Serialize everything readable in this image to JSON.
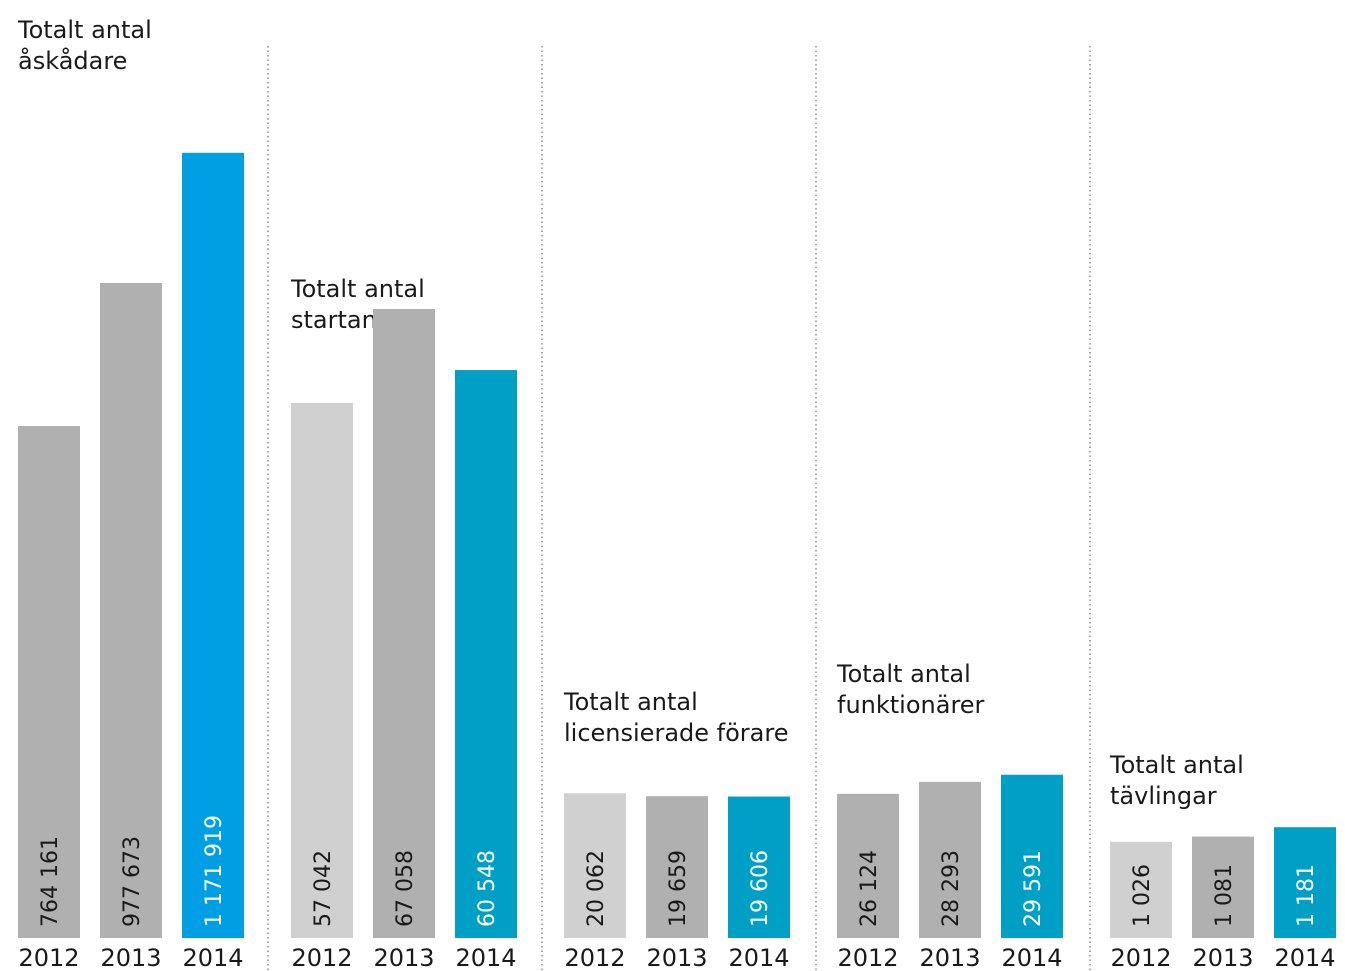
{
  "chart_data": [
    {
      "type": "bar",
      "title": [
        "Totalt antal",
        "åskådare"
      ],
      "categories": [
        "2012",
        "2013",
        "2014"
      ],
      "values": [
        764161,
        977673,
        1171919
      ],
      "value_labels": [
        "764 161",
        "977 673",
        "1 171 919"
      ],
      "colors": [
        "#b0b0b0",
        "#b0b0b0",
        "#009fe3"
      ],
      "ylim": [
        0,
        1400000
      ]
    },
    {
      "type": "bar",
      "title": [
        "Totalt antal",
        "startande"
      ],
      "categories": [
        "2012",
        "2013",
        "2014"
      ],
      "values": [
        57042,
        67058,
        60548
      ],
      "value_labels": [
        "57 042",
        "67 058",
        "60 548"
      ],
      "colors": [
        "#d0d0d0",
        "#b0b0b0",
        "#009fc6"
      ],
      "ylim": [
        0,
        100000
      ]
    },
    {
      "type": "bar",
      "title": [
        "Totalt antal",
        "licensierade förare"
      ],
      "categories": [
        "2012",
        "2013",
        "2014"
      ],
      "values": [
        20062,
        19659,
        19606
      ],
      "value_labels": [
        "20 062",
        "19 659",
        "19 606"
      ],
      "colors": [
        "#d0d0d0",
        "#b0b0b0",
        "#009fc6"
      ],
      "ylim": [
        0,
        130000
      ]
    },
    {
      "type": "bar",
      "title": [
        "Totalt antal",
        "funktionärer"
      ],
      "categories": [
        "2012",
        "2013",
        "2014"
      ],
      "values": [
        26124,
        28293,
        29591
      ],
      "value_labels": [
        "26 124",
        "28 293",
        "29 591"
      ],
      "colors": [
        "#b0b0b0",
        "#b0b0b0",
        "#009fc6"
      ],
      "ylim": [
        0,
        170000
      ]
    },
    {
      "type": "bar",
      "title": [
        "Totalt antal",
        "tävlingar"
      ],
      "categories": [
        "2012",
        "2013",
        "2014"
      ],
      "values": [
        1026,
        1081,
        1181
      ],
      "value_labels": [
        "1 026",
        "1 081",
        "1 181"
      ],
      "colors": [
        "#d0d0d0",
        "#b0b0b0",
        "#009fc6"
      ],
      "ylim": [
        0,
        10000
      ]
    }
  ]
}
